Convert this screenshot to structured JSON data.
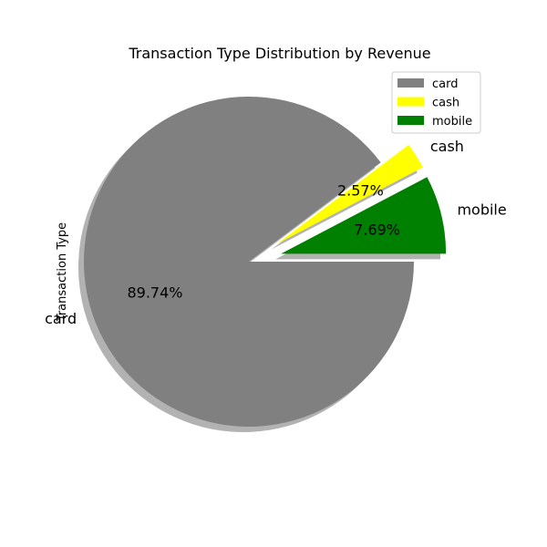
{
  "chart_data": {
    "type": "pie",
    "title": "Transaction Type Distribution by Revenue",
    "ylabel": "Transaction Type",
    "slices": [
      {
        "label": "card",
        "value": 89.74,
        "pct_label": "89.74%",
        "color": "#808080",
        "exploded": false
      },
      {
        "label": "cash",
        "value": 2.57,
        "pct_label": "2.57%",
        "color": "#ffff00",
        "exploded": true
      },
      {
        "label": "mobile",
        "value": 7.69,
        "pct_label": "7.69%",
        "color": "#008000",
        "exploded": true
      }
    ],
    "shadow": true,
    "legend": {
      "placement": "top-right",
      "entries": [
        "card",
        "cash",
        "mobile"
      ]
    }
  }
}
